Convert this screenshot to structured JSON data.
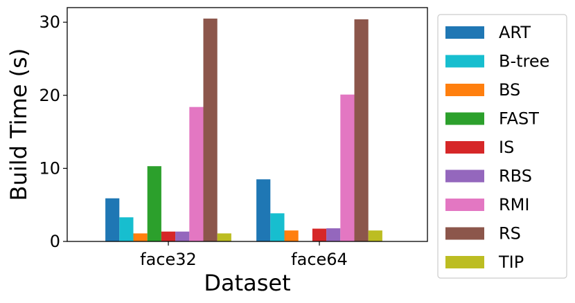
{
  "chart_data": {
    "type": "bar",
    "title": "",
    "xlabel": "Dataset",
    "ylabel": "Build Time (s)",
    "categories": [
      "face32",
      "face64"
    ],
    "ylim": [
      0,
      32
    ],
    "yticks": [
      0,
      10,
      20,
      30
    ],
    "grid": false,
    "legend_position": "outside-right",
    "series": [
      {
        "name": "ART",
        "color": "#1f77b4",
        "values": [
          5.9,
          8.5
        ]
      },
      {
        "name": "B-tree",
        "color": "#17becf",
        "values": [
          3.3,
          3.85
        ]
      },
      {
        "name": "BS",
        "color": "#ff7f0e",
        "values": [
          1.1,
          1.5
        ]
      },
      {
        "name": "FAST",
        "color": "#2ca02c",
        "values": [
          10.3,
          null
        ]
      },
      {
        "name": "IS",
        "color": "#d62728",
        "values": [
          1.35,
          1.75
        ]
      },
      {
        "name": "RBS",
        "color": "#9467bd",
        "values": [
          1.35,
          1.8
        ]
      },
      {
        "name": "RMI",
        "color": "#e377c2",
        "values": [
          18.4,
          20.1
        ]
      },
      {
        "name": "RS",
        "color": "#8c564b",
        "values": [
          30.5,
          30.4
        ]
      },
      {
        "name": "TIP",
        "color": "#bcbd22",
        "values": [
          1.1,
          1.5
        ]
      }
    ]
  }
}
